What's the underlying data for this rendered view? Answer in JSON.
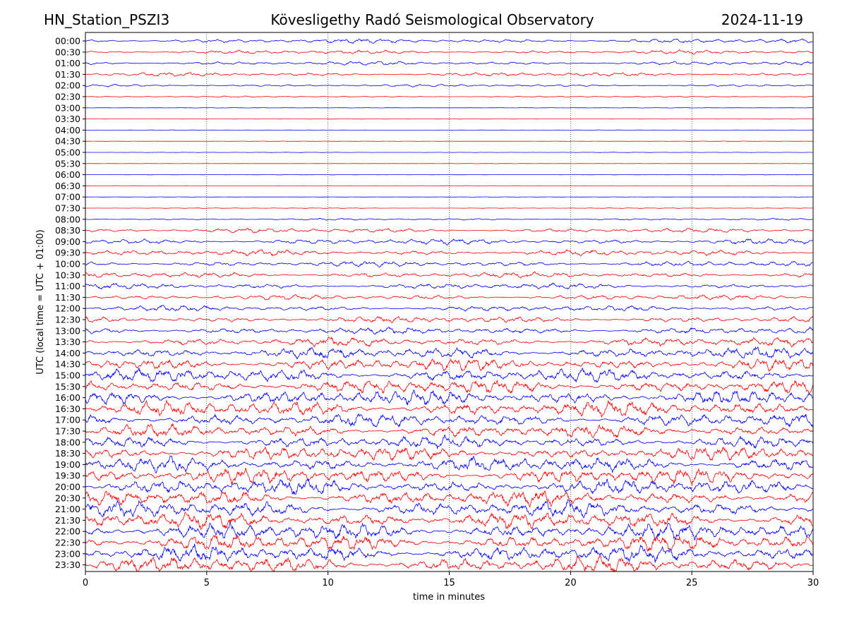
{
  "header": {
    "station": "HN_Station_PSZI3",
    "title": "Kövesligethy Radó Seismological Observatory",
    "date": "2024-11-19"
  },
  "chart_data": {
    "type": "line",
    "title": "Kövesligethy Radó Seismological Observatory",
    "xlabel": "time in minutes",
    "ylabel": "UTC (local time = UTC + 01:00)",
    "xlim": [
      0,
      30
    ],
    "xticks": [
      "0",
      "5",
      "10",
      "15",
      "20",
      "25",
      "30"
    ],
    "grid": "vertical dotted lines at 5-minute intervals",
    "series_colors": [
      "#0000ff",
      "#ff0000"
    ],
    "rows": [
      "00:00",
      "00:30",
      "01:00",
      "01:30",
      "02:00",
      "02:30",
      "03:00",
      "03:30",
      "04:00",
      "04:30",
      "05:00",
      "05:30",
      "06:00",
      "06:30",
      "07:00",
      "07:30",
      "08:00",
      "08:30",
      "09:00",
      "09:30",
      "10:00",
      "10:30",
      "11:00",
      "11:30",
      "12:00",
      "12:30",
      "13:00",
      "13:30",
      "14:00",
      "14:30",
      "15:00",
      "15:30",
      "16:00",
      "16:30",
      "17:00",
      "17:30",
      "18:00",
      "18:30",
      "19:00",
      "19:30",
      "20:00",
      "20:30",
      "21:00",
      "21:30",
      "22:00",
      "22:30",
      "23:00",
      "23:30"
    ],
    "relative_amplitude": [
      0.35,
      0.3,
      0.3,
      0.3,
      0.2,
      0.1,
      0.04,
      0.03,
      0.03,
      0.03,
      0.03,
      0.03,
      0.03,
      0.03,
      0.03,
      0.05,
      0.15,
      0.35,
      0.45,
      0.45,
      0.45,
      0.45,
      0.45,
      0.4,
      0.45,
      0.5,
      0.55,
      0.7,
      0.9,
      1.0,
      1.1,
      1.1,
      1.2,
      1.2,
      1.1,
      1.0,
      1.0,
      1.1,
      1.2,
      1.2,
      1.2,
      1.2,
      1.3,
      1.3,
      1.3,
      1.3,
      1.3,
      1.3
    ]
  }
}
